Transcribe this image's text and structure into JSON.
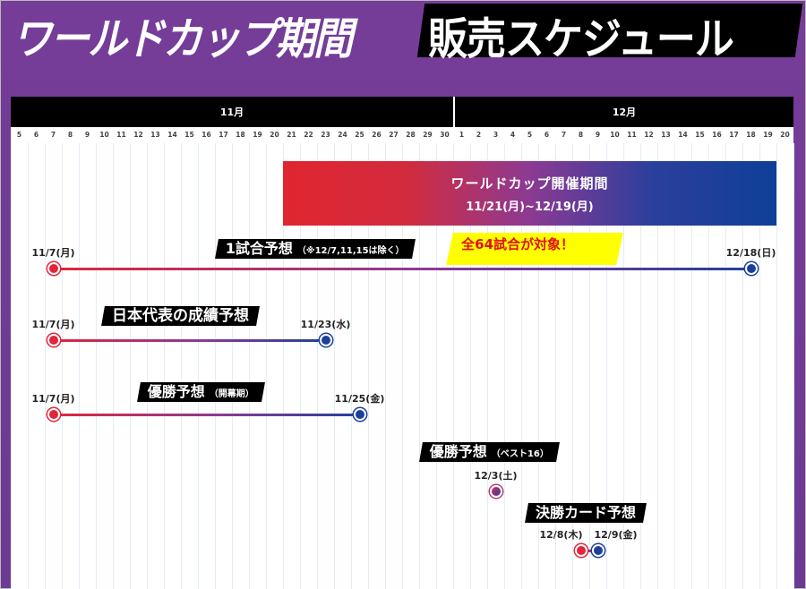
{
  "title": {
    "part1": "ワールドカップ期間",
    "part2": "販売スケジュール"
  },
  "timeline": {
    "months": [
      {
        "label": "11月",
        "month": 11,
        "days": [
          5,
          6,
          7,
          8,
          9,
          10,
          11,
          12,
          13,
          14,
          15,
          16,
          17,
          18,
          19,
          20,
          21,
          22,
          23,
          24,
          25,
          26,
          27,
          28,
          29,
          30
        ]
      },
      {
        "label": "12月",
        "month": 12,
        "days": [
          1,
          2,
          3,
          4,
          5,
          6,
          7,
          8,
          9,
          10,
          11,
          12,
          13,
          14,
          15,
          16,
          17,
          18,
          19,
          20
        ]
      }
    ]
  },
  "world_cup_period": {
    "title": "ワールドカップ開催期間",
    "range": "11/21(月)~12/19(月)",
    "start": "11/21",
    "end": "12/19",
    "colors": [
      "#e0262f",
      "#8c3a93",
      "#0f3f98"
    ]
  },
  "items": [
    {
      "title": "1試合予想",
      "note": "（※12/7,11,15は除く）",
      "start": "11/7",
      "start_label": "11/7(月)",
      "end": "12/18",
      "end_label": "12/18(日)",
      "callout": "全64試合が対象！"
    },
    {
      "title": "日本代表の成績予想",
      "start": "11/7",
      "start_label": "11/7(月)",
      "end": "11/23",
      "end_label": "11/23(水)"
    },
    {
      "title": "優勝予想",
      "note": "（開幕期）",
      "start": "11/7",
      "start_label": "11/7(月)",
      "end": "11/25",
      "end_label": "11/25(金)"
    },
    {
      "title": "優勝予想",
      "note": "（ベスト16）",
      "start": "12/3",
      "start_label": "12/3(土)"
    },
    {
      "title": "決勝カード予想",
      "start": "12/8",
      "start_label": "12/8(木)",
      "end": "12/9",
      "end_label": "12/9(金)"
    }
  ]
}
